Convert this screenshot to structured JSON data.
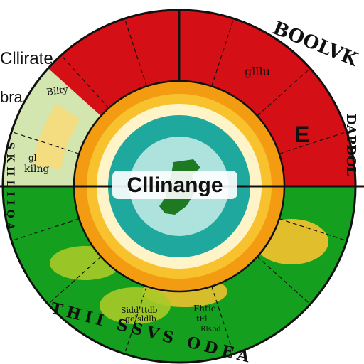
{
  "colors": {
    "red": "#d40f16",
    "green": "#14a01e",
    "yellow_green": "#a9c927",
    "pale_yellow": "#f4dc80",
    "pale_green": "#d3e6b0",
    "orange": "#f39c12",
    "amber": "#f7c22e",
    "cream": "#fff4c8",
    "teal": "#1fa99e",
    "teal_light": "#dff6f1",
    "dark_green": "#1e7a22",
    "stroke": "#111111"
  },
  "center": {
    "title": "Cllinange"
  },
  "side_labels": {
    "top_left": "Cllirate",
    "mid_left": "bra"
  },
  "segment_labels": {
    "top_right": "glllu",
    "upper_left": "Bilty",
    "upper_right_e": "E",
    "left_sector": "kilng",
    "left_sector_small": "gl",
    "bottom_left": "Sidd ttdb",
    "bottom_left_2": "gelsldlb",
    "bottom_right": "Fhtie",
    "bottom_right_2": "tFl",
    "bottom_right_3": "Rlsbd"
  },
  "rim_text": {
    "top_right": "BOOLVK",
    "right": "DAPDOL",
    "bottom": "THII SSVS ODEA",
    "left": "SKHLIIQA"
  }
}
